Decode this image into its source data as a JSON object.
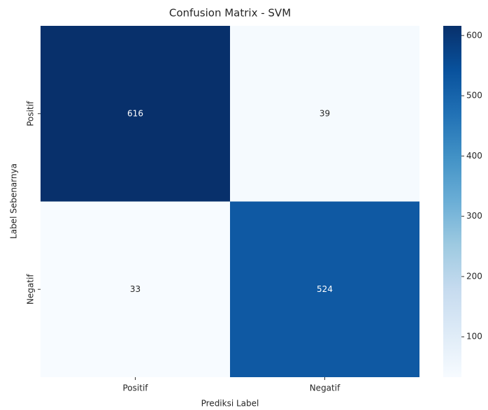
{
  "chart_data": {
    "type": "heatmap",
    "title": "Confusion Matrix - SVM",
    "x_label": "Prediksi Label",
    "y_label": "Label Sebenarnya",
    "x_categories": [
      "Positif",
      "Negatif"
    ],
    "y_categories": [
      "Positif",
      "Negatif"
    ],
    "values": [
      [
        616,
        39
      ],
      [
        33,
        524
      ]
    ],
    "colormap": "Blues",
    "colorbar_ticks": [
      100,
      200,
      300,
      400,
      500,
      600
    ]
  }
}
